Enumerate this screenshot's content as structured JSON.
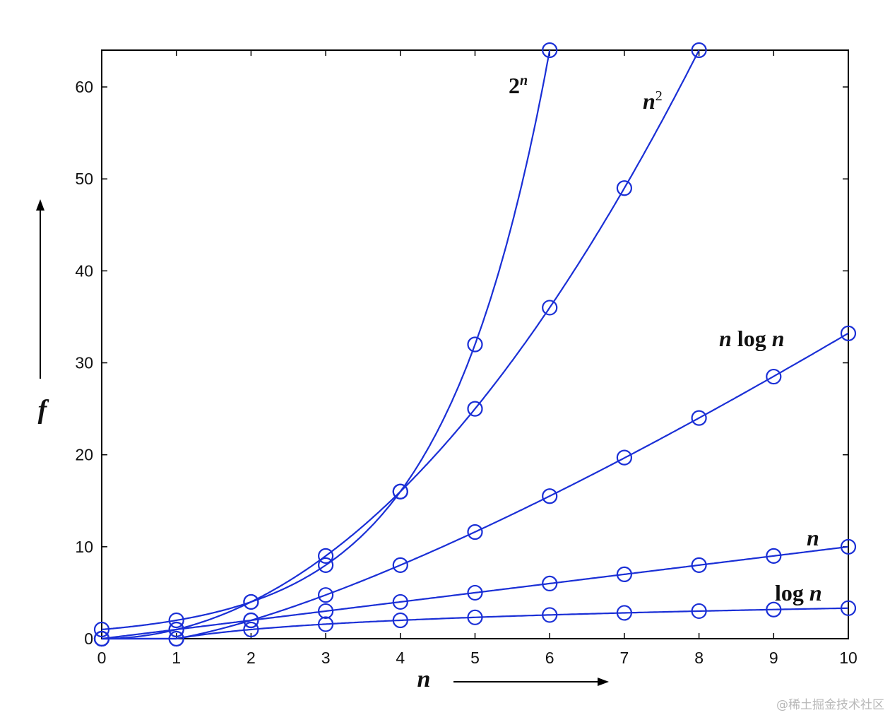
{
  "chart_data": {
    "type": "line",
    "xlabel": "n",
    "ylabel": "f",
    "xlim": [
      0,
      10
    ],
    "ylim": [
      0,
      64
    ],
    "x_ticks": [
      "0",
      "1",
      "2",
      "3",
      "4",
      "5",
      "6",
      "7",
      "8",
      "9",
      "10"
    ],
    "y_ticks": [
      "0",
      "10",
      "20",
      "30",
      "40",
      "50",
      "60"
    ],
    "grid": false,
    "line_color": "#1a2fd6",
    "marker": "open-circle",
    "series": [
      {
        "name": "log n",
        "name_parts": [
          "log ",
          "n",
          ""
        ],
        "x": [
          0,
          1,
          2,
          3,
          4,
          5,
          6,
          7,
          8,
          9,
          10
        ],
        "y": [
          0,
          0,
          1,
          1.58,
          2,
          2.32,
          2.58,
          2.81,
          3,
          3.17,
          3.32
        ]
      },
      {
        "name": "n",
        "name_parts": [
          "",
          "n",
          ""
        ],
        "x": [
          0,
          1,
          2,
          3,
          4,
          5,
          6,
          7,
          8,
          9,
          10
        ],
        "y": [
          0,
          1,
          2,
          3,
          4,
          5,
          6,
          7,
          8,
          9,
          10
        ]
      },
      {
        "name": "n log n",
        "name_parts": [
          "",
          "n",
          " log n"
        ],
        "x": [
          0,
          1,
          2,
          3,
          4,
          5,
          6,
          7,
          8,
          9,
          10
        ],
        "y": [
          0,
          0,
          2,
          4.75,
          8,
          11.6,
          15.5,
          19.7,
          24,
          28.5,
          33.2
        ]
      },
      {
        "name": "n2",
        "name_parts": [
          "",
          "n",
          "2"
        ],
        "x": [
          0,
          1,
          2,
          3,
          4,
          5,
          6,
          7,
          8
        ],
        "y": [
          0,
          1,
          4,
          9,
          16,
          25,
          36,
          49,
          64
        ]
      },
      {
        "name": "2n",
        "name_parts": [
          "2",
          "n",
          ""
        ],
        "x": [
          0,
          1,
          2,
          3,
          4,
          5,
          6
        ],
        "y": [
          1,
          2,
          4,
          8,
          16,
          32,
          64
        ]
      }
    ]
  },
  "watermark": "@稀土掘金技术社区"
}
